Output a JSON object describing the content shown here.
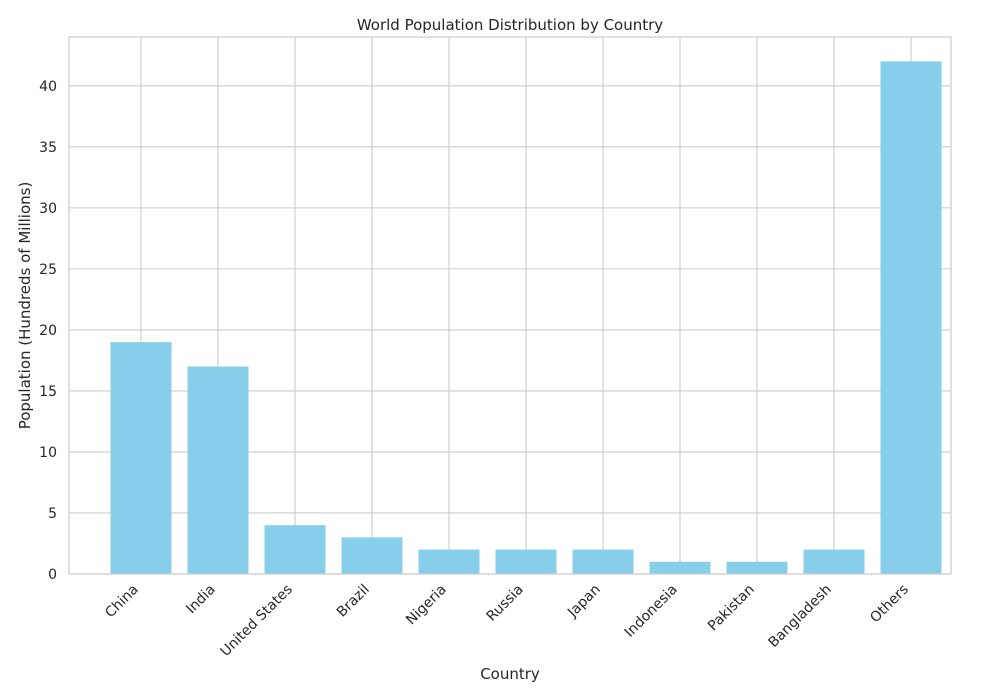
{
  "chart_data": {
    "type": "bar",
    "title": "World Population Distribution by Country",
    "xlabel": "Country",
    "ylabel": "Population (Hundreds of Millions)",
    "categories": [
      "China",
      "India",
      "United States",
      "Brazil",
      "Nigeria",
      "Russia",
      "Japan",
      "Indonesia",
      "Pakistan",
      "Bangladesh",
      "Others"
    ],
    "values": [
      19,
      17,
      4,
      3,
      2,
      2,
      2,
      1,
      1,
      2,
      42
    ],
    "ylim": [
      0,
      44
    ],
    "yticks": [
      0,
      5,
      10,
      15,
      20,
      25,
      30,
      35,
      40
    ],
    "grid": true,
    "bar_color": "#87CEEB",
    "grid_color": "#cccccc",
    "frame_color": "#cccccc"
  }
}
